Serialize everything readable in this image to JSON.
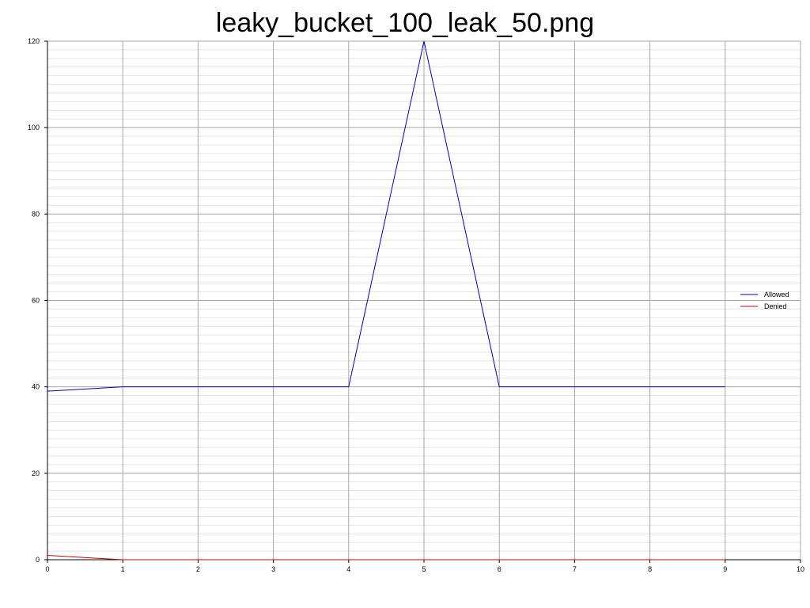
{
  "chart_data": {
    "type": "line",
    "title": "leaky_bucket_100_leak_50.png",
    "xlabel": "",
    "ylabel": "",
    "xlim": [
      0,
      10
    ],
    "ylim": [
      0,
      120
    ],
    "x_ticks": [
      0,
      1,
      2,
      3,
      4,
      5,
      6,
      7,
      8,
      9,
      10
    ],
    "y_ticks": [
      0,
      20,
      40,
      60,
      80,
      100,
      120
    ],
    "y_minor_step": 2,
    "grid": true,
    "legend_position": "right",
    "series": [
      {
        "name": "Allowed",
        "color": "#0000cc",
        "x": [
          0,
          1,
          2,
          3,
          4,
          5,
          6,
          7,
          8,
          9
        ],
        "y": [
          39,
          40,
          40,
          40,
          40,
          120,
          40,
          40,
          40,
          40
        ]
      },
      {
        "name": "Denied",
        "color": "#cc0000",
        "x": [
          0,
          1,
          2,
          3,
          4,
          5,
          6,
          7,
          8,
          9
        ],
        "y": [
          1,
          0,
          0,
          0,
          0,
          0,
          0,
          0,
          0,
          0
        ]
      }
    ]
  }
}
